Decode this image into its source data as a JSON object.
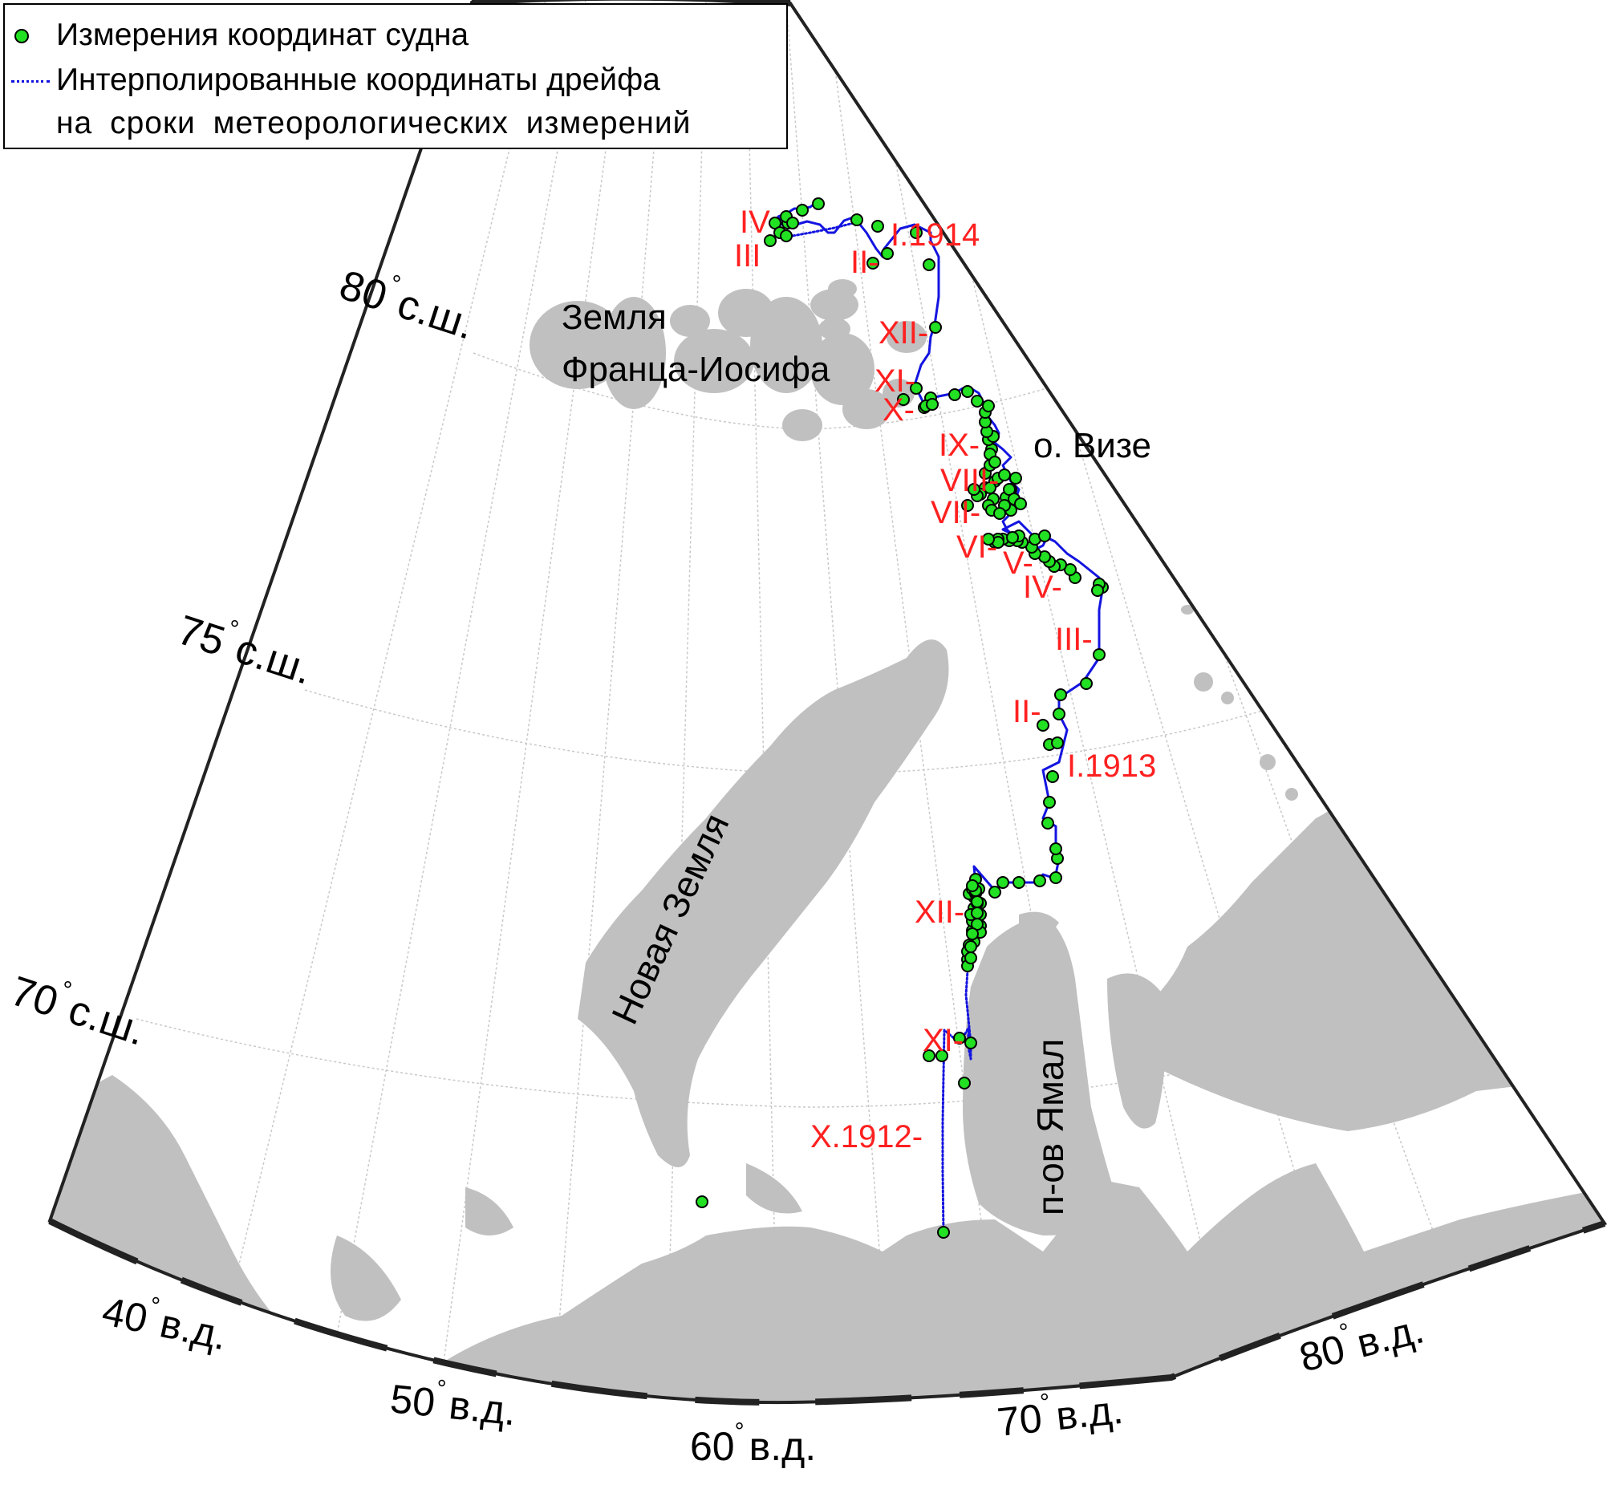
{
  "legend": {
    "measured": "Измерения координат судна",
    "interp_line1": "Интерполированные координаты дрейфа",
    "interp_line2": "на сроки метеорологических измерений"
  },
  "colors": {
    "land": "#c0c0c0",
    "sea": "#ffffff",
    "grid": "#c8c8c8",
    "track": "#1414e0",
    "point_fill": "#22e022",
    "month_label": "#ff2020",
    "frame": "#222222"
  },
  "lat_labels": [
    "70",
    "75",
    "80"
  ],
  "lat_suffix": "с.ш.",
  "lon_labels": [
    "40",
    "50",
    "60",
    "70",
    "80"
  ],
  "lon_suffix": "в.д.",
  "degree_symbol": "°",
  "place_names": {
    "franz_josef_1": "Земля",
    "franz_josef_2": "Франца-Иосифа",
    "vize": "о. Визе",
    "novaya_zemlya": "Новая Земля",
    "yamal": "п-ов Ямал"
  },
  "month_labels": [
    "X.1912-",
    "XI-",
    "XII-",
    "I.1913",
    "II-",
    "III-",
    "IV-",
    "V-",
    "VI-",
    "VII-",
    "VIII-",
    "IX-",
    "X-",
    "XI-",
    "XII-",
    "I.1914",
    "II-",
    "III",
    "IV"
  ]
}
